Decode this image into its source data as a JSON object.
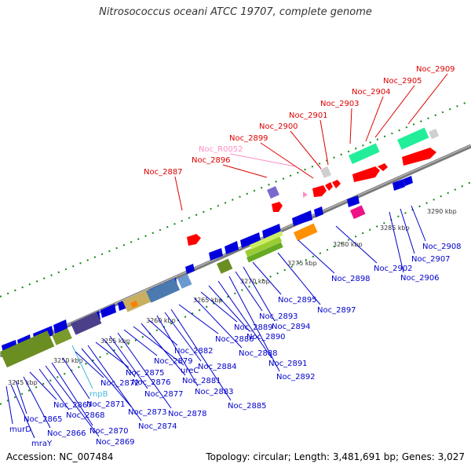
{
  "title": "Nitrosococcus oceani ATCC 19707, complete genome",
  "footer": {
    "accession": "Accession: NC_007484",
    "topology": "Topology: circular; Length: 3,481,691 bp; Genes: 3,027"
  },
  "colors": {
    "backbone": "#808080",
    "forward_gene": "#ff0000",
    "reverse_gene": "#0000dd",
    "rna_gene": "#ff8fc8",
    "tick": "#118811"
  },
  "kbp_labels": [
    "3245 kbp",
    "3250 kbp",
    "3255 kbp",
    "3260 kbp",
    "3265 kbp",
    "3270 kbp",
    "3275 kbp",
    "3280 kbp",
    "3285 kbp",
    "3290 kbp"
  ],
  "top_labels": [
    {
      "text": "Noc_2887",
      "color": "#dd0000"
    },
    {
      "text": "Noc_2896",
      "color": "#dd0000"
    },
    {
      "text": "Noc_R0052",
      "color": "#ff8fc8"
    },
    {
      "text": "Noc_2899",
      "color": "#dd0000"
    },
    {
      "text": "Noc_2900",
      "color": "#dd0000"
    },
    {
      "text": "Noc_2901",
      "color": "#dd0000"
    },
    {
      "text": "Noc_2903",
      "color": "#dd0000"
    },
    {
      "text": "Noc_2904",
      "color": "#dd0000"
    },
    {
      "text": "Noc_2905",
      "color": "#dd0000"
    },
    {
      "text": "Noc_2909",
      "color": "#dd0000"
    }
  ],
  "bottom_labels": [
    "murD",
    "mraY",
    "Noc_2865",
    "Noc_2866",
    "Noc_2867",
    "Noc_2868",
    "Noc_2869",
    "Noc_2870",
    "Noc_2871",
    "rnpB",
    "Noc_2872",
    "Noc_2873",
    "Noc_2874",
    "Noc_2875",
    "Noc_2876",
    "Noc_2877",
    "Noc_2878",
    "Noc_2879",
    "ureC",
    "Noc_2881",
    "Noc_2882",
    "Noc_2883",
    "Noc_2884",
    "Noc_2885",
    "Noc_2886",
    "Noc_2888",
    "Noc_2889",
    "Noc_2890",
    "Noc_2891",
    "Noc_2892",
    "Noc_2893",
    "Noc_2894",
    "Noc_2895",
    "Noc_2897",
    "Noc_2898",
    "Noc_2902",
    "Noc_2906",
    "Noc_2907",
    "Noc_2908"
  ]
}
